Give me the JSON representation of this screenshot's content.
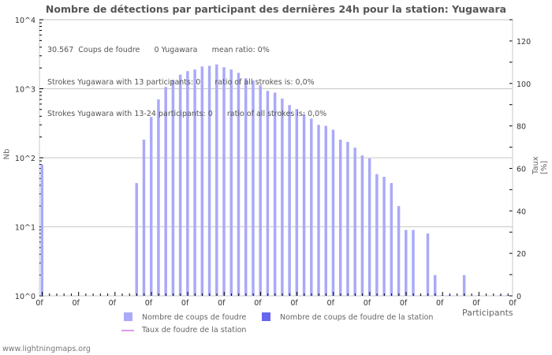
{
  "title": "Nombre de détections par participant des dernières 24h pour la station: Yugawara",
  "stats": {
    "line1": "30.567  Coups de foudre      0 Yugawara      mean ratio: 0%",
    "line2": "Strokes Yugawara with 13 participants: 0      ratio of all strokes is: 0,0%",
    "line3": "Strokes Yugawara with 13-24 participants: 0      ratio of all strokes is: 0,0%"
  },
  "axes": {
    "left_label": "Nb",
    "right_label": "Taux [%]",
    "x_label": "Participants",
    "left_ticks": [
      "10^0",
      "10^1",
      "10^2",
      "10^3",
      "10^4"
    ],
    "right_ticks": [
      "0",
      "20",
      "40",
      "60",
      "80",
      "100",
      "120"
    ],
    "x_tick_label": "0f"
  },
  "legend": {
    "item1": "Nombre de coups de foudre",
    "item2": "Nombre de coups de foudre de la station",
    "item3": "Taux de foudre de la station"
  },
  "colors": {
    "bars": "#aaaaf8",
    "station_bars": "#6666ee",
    "rate_line": "#dd99ee",
    "grid": "#c8c8c8"
  },
  "footer": "www.lightningmaps.org",
  "chart_data": {
    "type": "bar",
    "title": "Nombre de détections par participant des dernières 24h pour la station: Yugawara",
    "xlabel": "Participants",
    "ylabel": "Nb",
    "ylabel_right": "Taux [%]",
    "yscale": "log",
    "ylim": [
      1,
      10000
    ],
    "ylim_right": [
      0,
      130
    ],
    "grid": true,
    "legend_position": "bottom",
    "x": [
      0,
      1,
      2,
      3,
      4,
      5,
      6,
      7,
      8,
      9,
      10,
      11,
      12,
      13,
      14,
      15,
      16,
      17,
      18,
      19,
      20,
      21,
      22,
      23,
      24,
      25,
      26,
      27,
      28,
      29,
      30,
      31,
      32,
      33,
      34,
      35,
      36,
      37,
      38,
      39,
      40,
      41,
      42,
      43,
      44,
      45,
      46,
      47,
      48,
      49,
      50,
      51,
      52,
      53,
      54,
      55,
      56,
      57,
      58,
      59,
      60,
      61,
      62,
      63,
      64
    ],
    "series": [
      {
        "name": "Nombre de coups de foudre",
        "values": [
          80,
          0,
          0,
          0,
          0,
          0,
          0,
          0,
          0,
          0,
          0,
          0,
          0,
          43,
          183,
          390,
          700,
          1060,
          1350,
          1600,
          1800,
          1900,
          2100,
          2150,
          2250,
          2050,
          1900,
          1700,
          1420,
          1320,
          1130,
          930,
          880,
          720,
          580,
          510,
          430,
          370,
          300,
          290,
          255,
          183,
          170,
          140,
          108,
          98,
          58,
          53,
          43,
          20,
          9,
          9,
          1,
          8,
          2,
          1,
          1,
          0,
          2,
          0,
          1,
          0,
          0,
          1,
          1
        ]
      },
      {
        "name": "Nombre de coups de foudre de la station",
        "values": [
          0,
          0,
          0,
          0,
          0,
          0,
          0,
          0,
          0,
          0,
          0,
          0,
          0,
          0,
          0,
          0,
          0,
          0,
          0,
          0,
          0,
          0,
          0,
          0,
          0,
          0,
          0,
          0,
          0,
          0,
          0,
          0,
          0,
          0,
          0,
          0,
          0,
          0,
          0,
          0,
          0,
          0,
          0,
          0,
          0,
          0,
          0,
          0,
          0,
          0,
          0,
          0,
          0,
          0,
          0,
          0,
          0,
          0,
          0,
          0,
          0,
          0,
          0,
          0,
          0
        ]
      },
      {
        "name": "Taux de foudre de la station",
        "type": "line",
        "axis": "right",
        "values": [
          0,
          0,
          0,
          0,
          0,
          0,
          0,
          0,
          0,
          0,
          0,
          0,
          0,
          0,
          0,
          0,
          0,
          0,
          0,
          0,
          0,
          0,
          0,
          0,
          0,
          0,
          0,
          0,
          0,
          0,
          0,
          0,
          0,
          0,
          0,
          0,
          0,
          0,
          0,
          0,
          0,
          0,
          0,
          0,
          0,
          0,
          0,
          0,
          0,
          0,
          0,
          0,
          0,
          0,
          0,
          0,
          0,
          0,
          0,
          0,
          0,
          0,
          0,
          0,
          0
        ]
      }
    ]
  }
}
